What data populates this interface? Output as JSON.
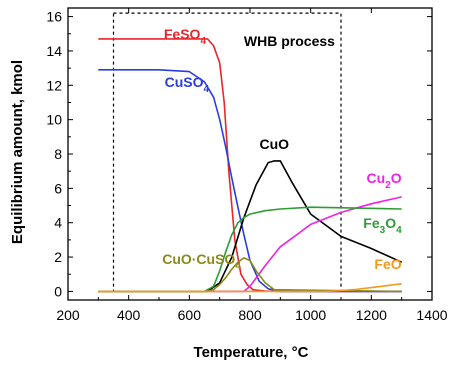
{
  "chart_data": {
    "type": "line",
    "xlabel": "Temperature, °C",
    "ylabel": "Equilibrium amount, kmol",
    "xlim": [
      200,
      1400
    ],
    "ylim": [
      -0.5,
      16.5
    ],
    "xticks": [
      200,
      400,
      600,
      800,
      1000,
      1200,
      1400
    ],
    "yticks": [
      0,
      2,
      4,
      6,
      8,
      10,
      12,
      14,
      16
    ],
    "grid": false,
    "region": {
      "label": "WHB process",
      "x_range": [
        350,
        1100
      ],
      "y_range": [
        0,
        16.2
      ]
    },
    "series": [
      {
        "name": "FeSO4",
        "label_main": "FeSO",
        "label_sub": "4",
        "color": "#e8262b",
        "x": [
          300,
          660,
          680,
          700,
          715,
          730,
          750,
          770,
          790,
          810,
          850,
          900,
          1300
        ],
        "y": [
          14.7,
          14.7,
          14.3,
          13.3,
          11.0,
          7.0,
          3.0,
          1.0,
          0.4,
          0.1,
          0.02,
          0,
          0
        ]
      },
      {
        "name": "CuSO4",
        "label_main": "CuSO",
        "label_sub": "4",
        "color": "#2a3ee0",
        "x": [
          300,
          500,
          600,
          650,
          680,
          700,
          720,
          740,
          760,
          780,
          800,
          830,
          860,
          900,
          1300
        ],
        "y": [
          12.9,
          12.9,
          12.8,
          12.2,
          11.3,
          10.0,
          8.4,
          6.6,
          4.9,
          3.3,
          1.8,
          0.6,
          0.15,
          0,
          0
        ]
      },
      {
        "name": "CuO",
        "label_main": "CuO",
        "label_sub": "",
        "color": "#000000",
        "x": [
          300,
          660,
          700,
          740,
          780,
          820,
          860,
          880,
          900,
          940,
          1000,
          1100,
          1200,
          1300
        ],
        "y": [
          0,
          0,
          0.5,
          2.0,
          4.3,
          6.2,
          7.5,
          7.6,
          7.6,
          6.3,
          4.5,
          3.2,
          2.5,
          1.7
        ]
      },
      {
        "name": "Cu2O",
        "label_main": "Cu",
        "label_sub": "2",
        "label_tail": "O",
        "color": "#ee22e4",
        "x": [
          300,
          780,
          800,
          850,
          900,
          1000,
          1100,
          1200,
          1300
        ],
        "y": [
          0,
          0,
          0.3,
          1.5,
          2.6,
          3.9,
          4.6,
          5.1,
          5.5
        ]
      },
      {
        "name": "Fe3O4",
        "label_main": "Fe",
        "label_sub": "3",
        "label_tail": "O",
        "label_sub2": "4",
        "color": "#2e9d36",
        "x": [
          300,
          650,
          680,
          700,
          720,
          740,
          760,
          780,
          800,
          850,
          900,
          1000,
          1300
        ],
        "y": [
          0,
          0,
          0.3,
          1.2,
          2.3,
          3.3,
          4.0,
          4.3,
          4.5,
          4.7,
          4.8,
          4.9,
          4.8
        ]
      },
      {
        "name": "CuO·CuSO4",
        "label_main": "CuO·CuSO",
        "label_sub": "4",
        "color": "#8a8a1a",
        "x": [
          300,
          660,
          680,
          700,
          720,
          740,
          760,
          780,
          800,
          820,
          850,
          880,
          1300
        ],
        "y": [
          0,
          0,
          0.1,
          0.4,
          0.8,
          1.3,
          1.7,
          1.95,
          1.8,
          1.2,
          0.5,
          0.1,
          0
        ]
      },
      {
        "name": "FeO",
        "label_main": "FeO",
        "label_sub": "",
        "color": "#f29a1c",
        "x": [
          300,
          1050,
          1100,
          1150,
          1200,
          1250,
          1300
        ],
        "y": [
          0,
          0,
          0.05,
          0.12,
          0.22,
          0.33,
          0.45
        ]
      }
    ]
  }
}
